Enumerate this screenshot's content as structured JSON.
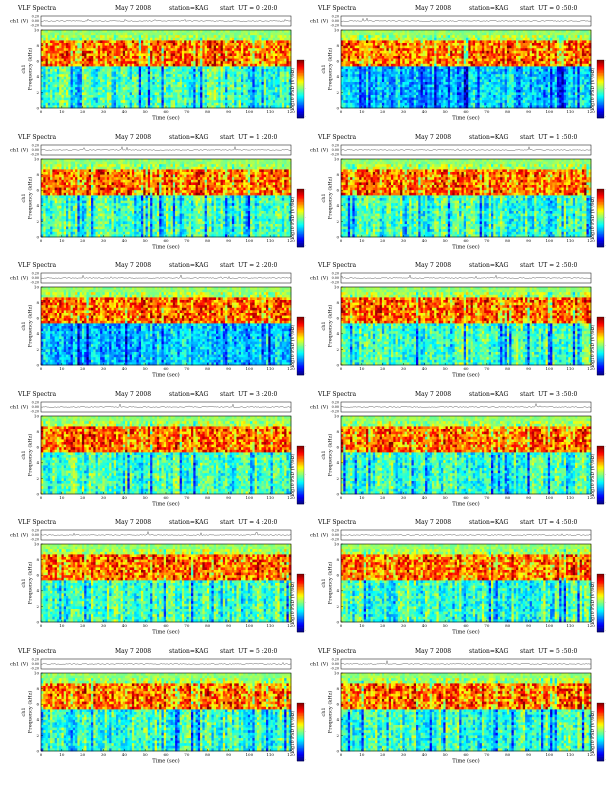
{
  "page": {
    "background": "#ffffff"
  },
  "common": {
    "title": "VLF Spectra",
    "month": "May 7 2008",
    "station": "station=KAG",
    "start_prefix": "start  UT =",
    "ch_label": "ch1 (V)",
    "ch_ticks": [
      "0.20",
      "0.00",
      "-0.20"
    ],
    "freq_label": "ch1\nFrequency  (kHz)",
    "freq_ticks": [
      "0",
      "2",
      "4",
      "6",
      "8",
      "10"
    ],
    "time_label": "Time  (sec)",
    "time_ticks": [
      "0",
      "10",
      "20",
      "30",
      "40",
      "50",
      "60",
      "70",
      "80",
      "90",
      "100",
      "110",
      "120"
    ],
    "cbar_label": "log10 PSD (V²/Hz)",
    "cbar_colors": [
      "#00007f",
      "#0000ff",
      "#0080ff",
      "#00ffff",
      "#80ff80",
      "#ffff00",
      "#ff8000",
      "#ff0000",
      "#7f0000"
    ],
    "cbar_tick_labels": [
      "-",
      "-",
      "-"
    ]
  },
  "chart_data": [
    {
      "type": "heatmap",
      "start_ut": "0 :20:0",
      "title": "VLF Spectra",
      "xlabel": "Time  (sec)",
      "ylabel": "Frequency  (kHz)",
      "xlim": [
        0,
        120
      ],
      "ylim": [
        0,
        10
      ],
      "intense_band_khz": [
        5.5,
        8.5
      ]
    },
    {
      "type": "heatmap",
      "start_ut": "0 :50:0",
      "title": "VLF Spectra",
      "xlabel": "Time  (sec)",
      "ylabel": "Frequency  (kHz)",
      "xlim": [
        0,
        120
      ],
      "ylim": [
        0,
        10
      ],
      "intense_band_khz": [
        5.5,
        8.5
      ]
    },
    {
      "type": "heatmap",
      "start_ut": "1 :20:0",
      "title": "VLF Spectra",
      "xlabel": "Time  (sec)",
      "ylabel": "Frequency  (kHz)",
      "xlim": [
        0,
        120
      ],
      "ylim": [
        0,
        10
      ],
      "intense_band_khz": [
        5.5,
        8.5
      ]
    },
    {
      "type": "heatmap",
      "start_ut": "1 :50:0",
      "title": "VLF Spectra",
      "xlabel": "Time  (sec)",
      "ylabel": "Frequency  (kHz)",
      "xlim": [
        0,
        120
      ],
      "ylim": [
        0,
        10
      ],
      "intense_band_khz": [
        5.5,
        8.5
      ]
    },
    {
      "type": "heatmap",
      "start_ut": "2 :20:0",
      "title": "VLF Spectra",
      "xlabel": "Time  (sec)",
      "ylabel": "Frequency  (kHz)",
      "xlim": [
        0,
        120
      ],
      "ylim": [
        0,
        10
      ],
      "intense_band_khz": [
        5.5,
        8.5
      ]
    },
    {
      "type": "heatmap",
      "start_ut": "2 :50:0",
      "title": "VLF Spectra",
      "xlabel": "Time  (sec)",
      "ylabel": "Frequency  (kHz)",
      "xlim": [
        0,
        120
      ],
      "ylim": [
        0,
        10
      ],
      "intense_band_khz": [
        5.5,
        8.5
      ]
    },
    {
      "type": "heatmap",
      "start_ut": "3 :20:0",
      "title": "VLF Spectra",
      "xlabel": "Time  (sec)",
      "ylabel": "Frequency  (kHz)",
      "xlim": [
        0,
        120
      ],
      "ylim": [
        0,
        10
      ],
      "intense_band_khz": [
        5.5,
        8.5
      ]
    },
    {
      "type": "heatmap",
      "start_ut": "3 :50:0",
      "title": "VLF Spectra",
      "xlabel": "Time  (sec)",
      "ylabel": "Frequency  (kHz)",
      "xlim": [
        0,
        120
      ],
      "ylim": [
        0,
        10
      ],
      "intense_band_khz": [
        5.5,
        8.5
      ]
    },
    {
      "type": "heatmap",
      "start_ut": "4 :20:0",
      "title": "VLF Spectra",
      "xlabel": "Time  (sec)",
      "ylabel": "Frequency  (kHz)",
      "xlim": [
        0,
        120
      ],
      "ylim": [
        0,
        10
      ],
      "intense_band_khz": [
        5.5,
        8.5
      ]
    },
    {
      "type": "heatmap",
      "start_ut": "4 :50:0",
      "title": "VLF Spectra",
      "xlabel": "Time  (sec)",
      "ylabel": "Frequency  (kHz)",
      "xlim": [
        0,
        120
      ],
      "ylim": [
        0,
        10
      ],
      "intense_band_khz": [
        5.5,
        8.5
      ]
    },
    {
      "type": "heatmap",
      "start_ut": "5 :20:0",
      "title": "VLF Spectra",
      "xlabel": "Time  (sec)",
      "ylabel": "Frequency  (kHz)",
      "xlim": [
        0,
        120
      ],
      "ylim": [
        0,
        10
      ],
      "intense_band_khz": [
        5.5,
        8.5
      ]
    },
    {
      "type": "heatmap",
      "start_ut": "5 :50:0",
      "title": "VLF Spectra",
      "xlabel": "Time  (sec)",
      "ylabel": "Frequency  (kHz)",
      "xlim": [
        0,
        120
      ],
      "ylim": [
        0,
        10
      ],
      "intense_band_khz": [
        5.5,
        8.5
      ]
    }
  ]
}
